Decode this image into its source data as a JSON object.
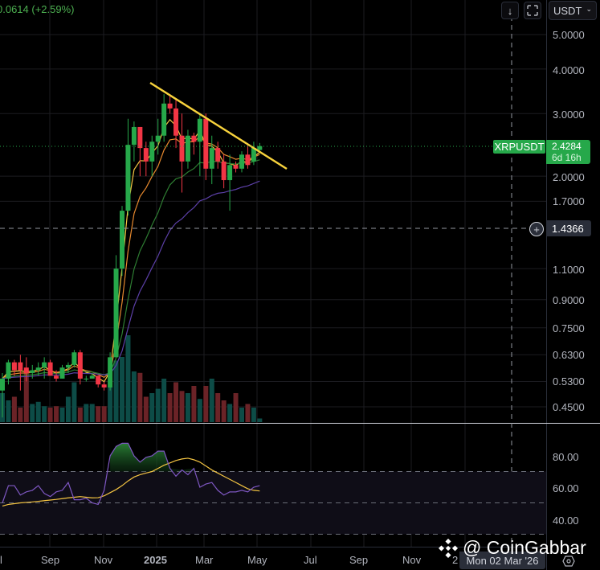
{
  "header": {
    "change_text": "0.0614 (+2.59%)"
  },
  "toolbar": {
    "scroll_down_icon": "arrow-down",
    "fullscreen_icon": "fullscreen",
    "currency_label": "USDT",
    "currency_chevron": "⌄"
  },
  "price_axis": {
    "labels": [
      "5.0000",
      "4.0000",
      "3.0000",
      "2.0000",
      "1.7000",
      "1.1000",
      "0.9000",
      "0.7500",
      "0.6300",
      "0.5300",
      "0.4500"
    ],
    "symbol_tag": "XRPUSDT",
    "last_price": "2.4284",
    "countdown": "6d 16h",
    "crosshair_price": "1.4366",
    "plus_label": "+"
  },
  "rsi_axis": {
    "labels": [
      "80.00",
      "60.00",
      "40.00"
    ]
  },
  "time_axis": {
    "labels": [
      "l",
      "Sep",
      "Nov",
      "2025",
      "Mar",
      "May",
      "Jul",
      "Sep",
      "Nov",
      "2"
    ],
    "crosshair_date": "Mon 02 Mar '26"
  },
  "watermark": {
    "text": "@ CoinGabbar"
  },
  "colors": {
    "up": "#26a84a",
    "down": "#f23645",
    "vol_up": "#0d4c47",
    "vol_down": "#6b2327",
    "ema_fast": "#f5c542",
    "ema_mid": "#e6892e",
    "ema_slow": "#2e7d32",
    "ema_long": "#5b3fa6",
    "trendline": "#f7d23c",
    "rsi": "#7e57c2",
    "rsi_ma": "#f5c542"
  },
  "chart_data": {
    "type": "candlestick",
    "symbol": "XRPUSDT",
    "interval": "weekly",
    "scale": "log",
    "ylim": [
      0.42,
      5.4
    ],
    "y_ticks": [
      5.0,
      4.0,
      3.0,
      2.0,
      1.7,
      1.1,
      0.9,
      0.75,
      0.63,
      0.53,
      0.45
    ],
    "x_ticks": [
      "Sep",
      "Nov",
      "2025",
      "Mar",
      "May",
      "Jul",
      "Sep",
      "Nov"
    ],
    "last_price": 2.4284,
    "change": 0.0614,
    "change_pct": 2.59,
    "crosshair_price": 1.4366,
    "candles": [
      [
        0.5,
        0.56,
        0.42,
        0.54
      ],
      [
        0.54,
        0.61,
        0.52,
        0.6
      ],
      [
        0.6,
        0.61,
        0.55,
        0.57
      ],
      [
        0.6,
        0.63,
        0.5,
        0.57
      ],
      [
        0.58,
        0.62,
        0.53,
        0.56
      ],
      [
        0.56,
        0.59,
        0.54,
        0.57
      ],
      [
        0.57,
        0.6,
        0.55,
        0.58
      ],
      [
        0.58,
        0.62,
        0.54,
        0.6
      ],
      [
        0.6,
        0.61,
        0.55,
        0.55
      ],
      [
        0.55,
        0.57,
        0.53,
        0.54
      ],
      [
        0.54,
        0.59,
        0.54,
        0.58
      ],
      [
        0.58,
        0.6,
        0.56,
        0.59
      ],
      [
        0.59,
        0.65,
        0.58,
        0.64
      ],
      [
        0.64,
        0.65,
        0.52,
        0.54
      ],
      [
        0.54,
        0.55,
        0.53,
        0.54
      ],
      [
        0.54,
        0.56,
        0.54,
        0.55
      ],
      [
        0.55,
        0.55,
        0.51,
        0.52
      ],
      [
        0.52,
        0.53,
        0.5,
        0.51
      ],
      [
        0.51,
        0.64,
        0.5,
        0.62
      ],
      [
        0.62,
        1.2,
        0.62,
        1.1
      ],
      [
        1.1,
        1.65,
        1.05,
        1.6
      ],
      [
        1.6,
        2.9,
        1.55,
        2.45
      ],
      [
        2.45,
        2.85,
        2.2,
        2.75
      ],
      [
        2.75,
        2.75,
        2.0,
        2.4
      ],
      [
        2.4,
        2.5,
        2.0,
        2.2
      ],
      [
        2.2,
        2.6,
        2.0,
        2.5
      ],
      [
        2.5,
        2.9,
        2.3,
        2.6
      ],
      [
        2.6,
        3.4,
        2.5,
        3.2
      ],
      [
        3.2,
        3.4,
        3.0,
        3.1
      ],
      [
        3.1,
        3.3,
        2.4,
        2.6
      ],
      [
        2.6,
        3.0,
        1.8,
        2.2
      ],
      [
        2.2,
        2.7,
        2.1,
        2.6
      ],
      [
        2.6,
        2.65,
        2.3,
        2.5
      ],
      [
        2.5,
        3.0,
        2.0,
        2.9
      ],
      [
        2.9,
        3.0,
        1.95,
        2.1
      ],
      [
        2.1,
        2.6,
        1.9,
        2.4
      ],
      [
        2.4,
        2.5,
        2.1,
        2.2
      ],
      [
        2.2,
        2.3,
        1.85,
        1.95
      ],
      [
        1.95,
        2.3,
        1.6,
        2.15
      ],
      [
        2.15,
        2.2,
        2.05,
        2.1
      ],
      [
        2.1,
        2.35,
        2.05,
        2.3
      ],
      [
        2.3,
        2.45,
        2.1,
        2.15
      ],
      [
        2.2,
        2.5,
        2.15,
        2.4
      ],
      [
        2.37,
        2.48,
        2.36,
        2.43
      ]
    ],
    "volume_pct": [
      40,
      30,
      35,
      20,
      70,
      25,
      28,
      22,
      20,
      22,
      20,
      35,
      55,
      20,
      25,
      25,
      22,
      22,
      50,
      85,
      90,
      120,
      70,
      68,
      35,
      40,
      46,
      60,
      40,
      55,
      43,
      40,
      50,
      32,
      50,
      60,
      40,
      30,
      25,
      40,
      20,
      25,
      20,
      5
    ],
    "trendline": {
      "from": [
        2025.02,
        3.7
      ],
      "to": [
        2025.45,
        2.15
      ]
    },
    "rsi": {
      "ylim": [
        30,
        90
      ],
      "bands": [
        70,
        50,
        30
      ],
      "rsi_values": [
        50,
        61,
        61,
        55,
        57,
        58,
        61,
        56,
        54,
        57,
        58,
        63,
        52,
        52,
        53,
        50,
        49,
        58,
        80,
        86,
        88,
        88,
        80,
        76,
        79,
        80,
        83,
        83,
        72,
        67,
        71,
        68,
        72,
        60,
        62,
        63,
        58,
        55,
        57,
        57,
        58,
        57,
        60,
        61
      ],
      "rsi_ma_values": [
        48,
        49,
        49.5,
        50,
        50.3,
        50.6,
        51,
        51.4,
        51.8,
        52.2,
        52.7,
        53.2,
        53.6,
        54,
        53.6,
        53.2,
        53.3,
        54.5,
        56.5,
        58.5,
        61,
        64,
        66.5,
        68,
        69,
        70,
        72,
        74,
        75.5,
        77,
        78,
        78.5,
        77.5,
        76,
        73.5,
        71,
        69,
        67,
        65,
        63,
        61,
        59,
        58,
        57.6
      ]
    }
  }
}
